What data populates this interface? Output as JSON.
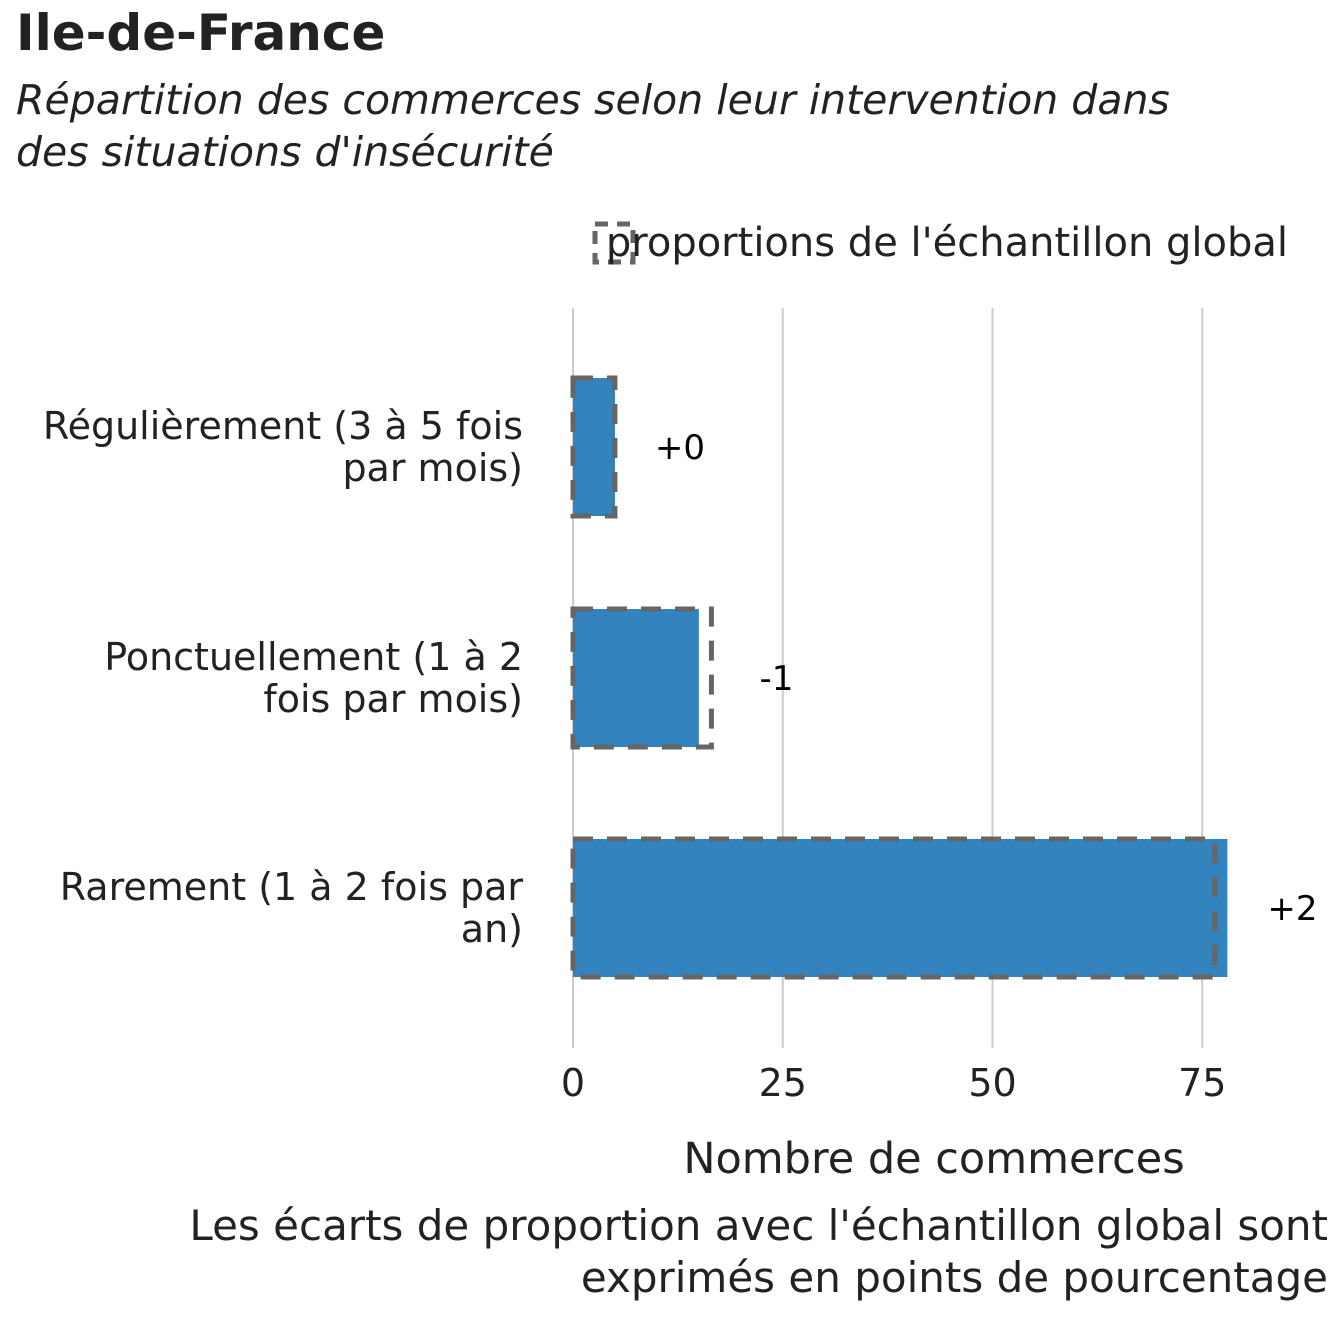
{
  "title": "Ile-de-France",
  "subtitle_lines": [
    "Répartition des commerces selon leur intervention dans",
    "des situations d'insécurité"
  ],
  "caption_lines": [
    "Les écarts de proportion avec l'échantillon global sont",
    "exprimés en points de pourcentage"
  ],
  "colors": {
    "bar": "#3283BE",
    "reference": "#666666",
    "grid": "#CCCCCC",
    "text": "#222222"
  },
  "chart_data": {
    "type": "bar",
    "orientation": "horizontal",
    "xlabel": "Nombre de commerces",
    "xlim": [
      0,
      78
    ],
    "xticks": [
      0,
      25,
      50,
      75
    ],
    "grid": true,
    "legend": {
      "position": "top-right",
      "label": "proportions de l'échantillon global"
    },
    "categories": [
      {
        "label_lines": [
          "Régulièrement (3 à 5 fois",
          "par mois)"
        ],
        "value": 5,
        "reference": 5,
        "diff_label": "+0"
      },
      {
        "label_lines": [
          "Ponctuellement (1 à 2",
          "fois par mois)"
        ],
        "value": 15,
        "reference": 16.5,
        "diff_label": "-1"
      },
      {
        "label_lines": [
          "Rarement (1 à 2 fois par",
          "an)"
        ],
        "value": 78,
        "reference": 76.5,
        "diff_label": "+2"
      }
    ]
  }
}
